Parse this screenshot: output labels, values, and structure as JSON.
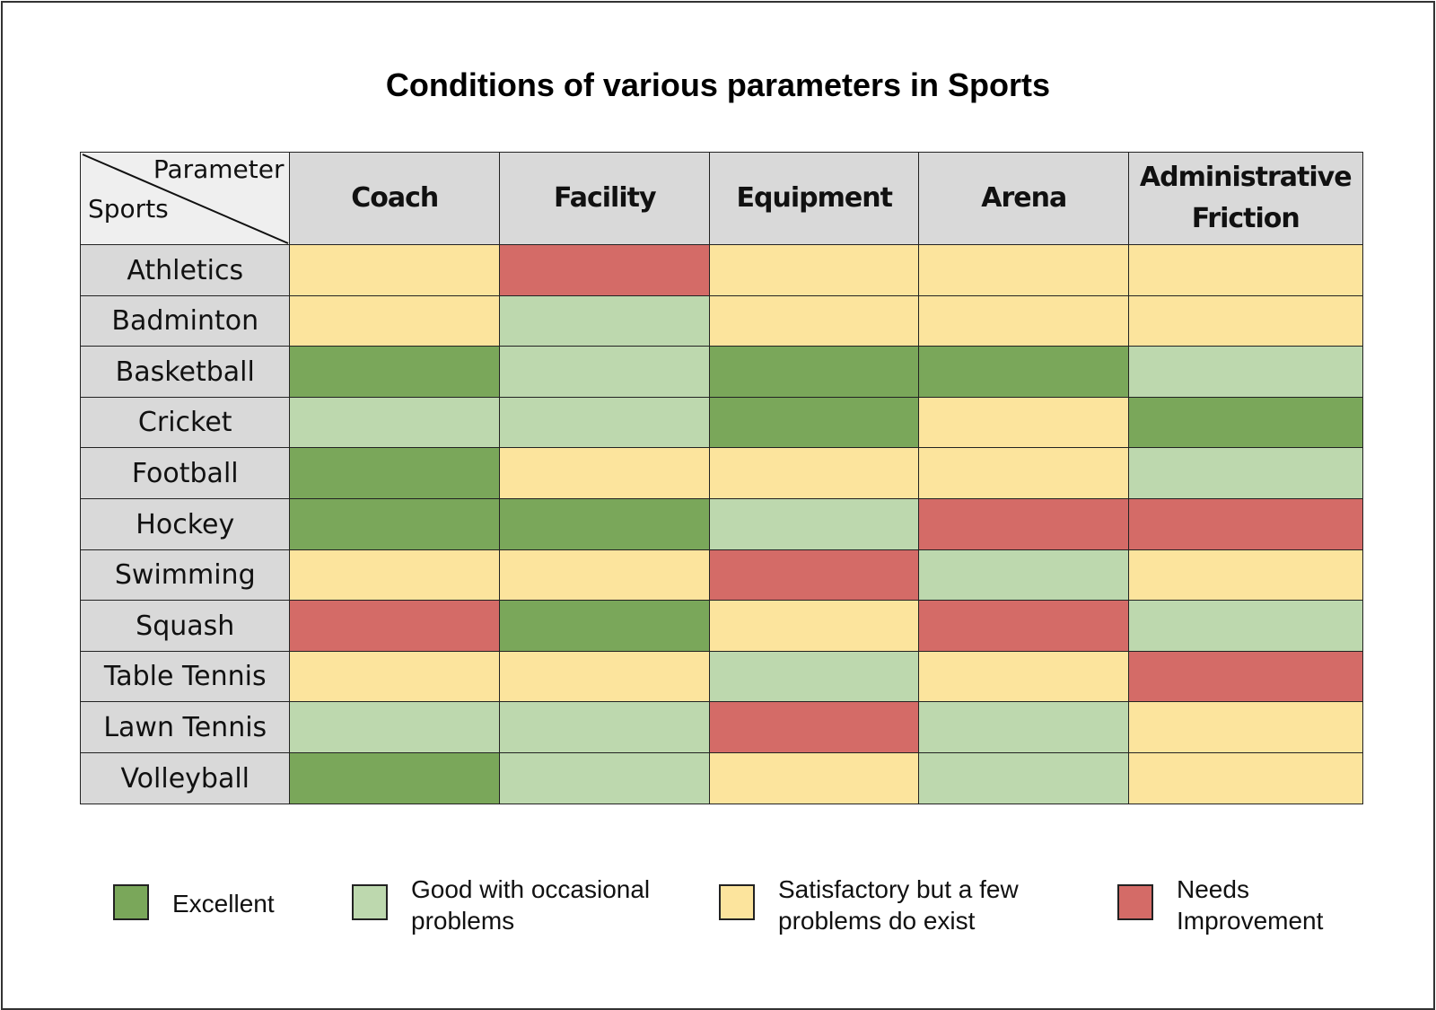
{
  "chart_data": {
    "type": "heatmap",
    "title": "Conditions of various parameters in Sports",
    "corner": {
      "column_axis_label": "Parameter",
      "row_axis_label": "Sports"
    },
    "columns": [
      "Coach",
      "Facility",
      "Equipment",
      "Arena",
      "Administrative Friction"
    ],
    "rows": [
      "Athletics",
      "Badminton",
      "Basketball",
      "Cricket",
      "Football",
      "Hockey",
      "Swimming",
      "Squash",
      "Table Tennis",
      "Lawn Tennis",
      "Volleyball"
    ],
    "levels": [
      {
        "key": "E",
        "label": "Excellent",
        "color": "#7aa75a"
      },
      {
        "key": "G",
        "label": "Good with occasional problems",
        "color": "#bdd8ae"
      },
      {
        "key": "S",
        "label": "Satisfactory but a few problems do exist",
        "color": "#fce49d"
      },
      {
        "key": "N",
        "label": "Needs Improvement",
        "color": "#d46b67"
      }
    ],
    "values": [
      [
        "S",
        "N",
        "S",
        "S",
        "S"
      ],
      [
        "S",
        "G",
        "S",
        "S",
        "S"
      ],
      [
        "E",
        "G",
        "E",
        "E",
        "G"
      ],
      [
        "G",
        "G",
        "E",
        "S",
        "E"
      ],
      [
        "E",
        "S",
        "S",
        "S",
        "G"
      ],
      [
        "E",
        "E",
        "G",
        "N",
        "N"
      ],
      [
        "S",
        "S",
        "N",
        "G",
        "S"
      ],
      [
        "N",
        "E",
        "S",
        "N",
        "G"
      ],
      [
        "S",
        "S",
        "G",
        "S",
        "N"
      ],
      [
        "G",
        "G",
        "N",
        "G",
        "S"
      ],
      [
        "E",
        "G",
        "S",
        "G",
        "S"
      ]
    ],
    "legend_position": "bottom",
    "header_color": "#d9d9d9"
  }
}
